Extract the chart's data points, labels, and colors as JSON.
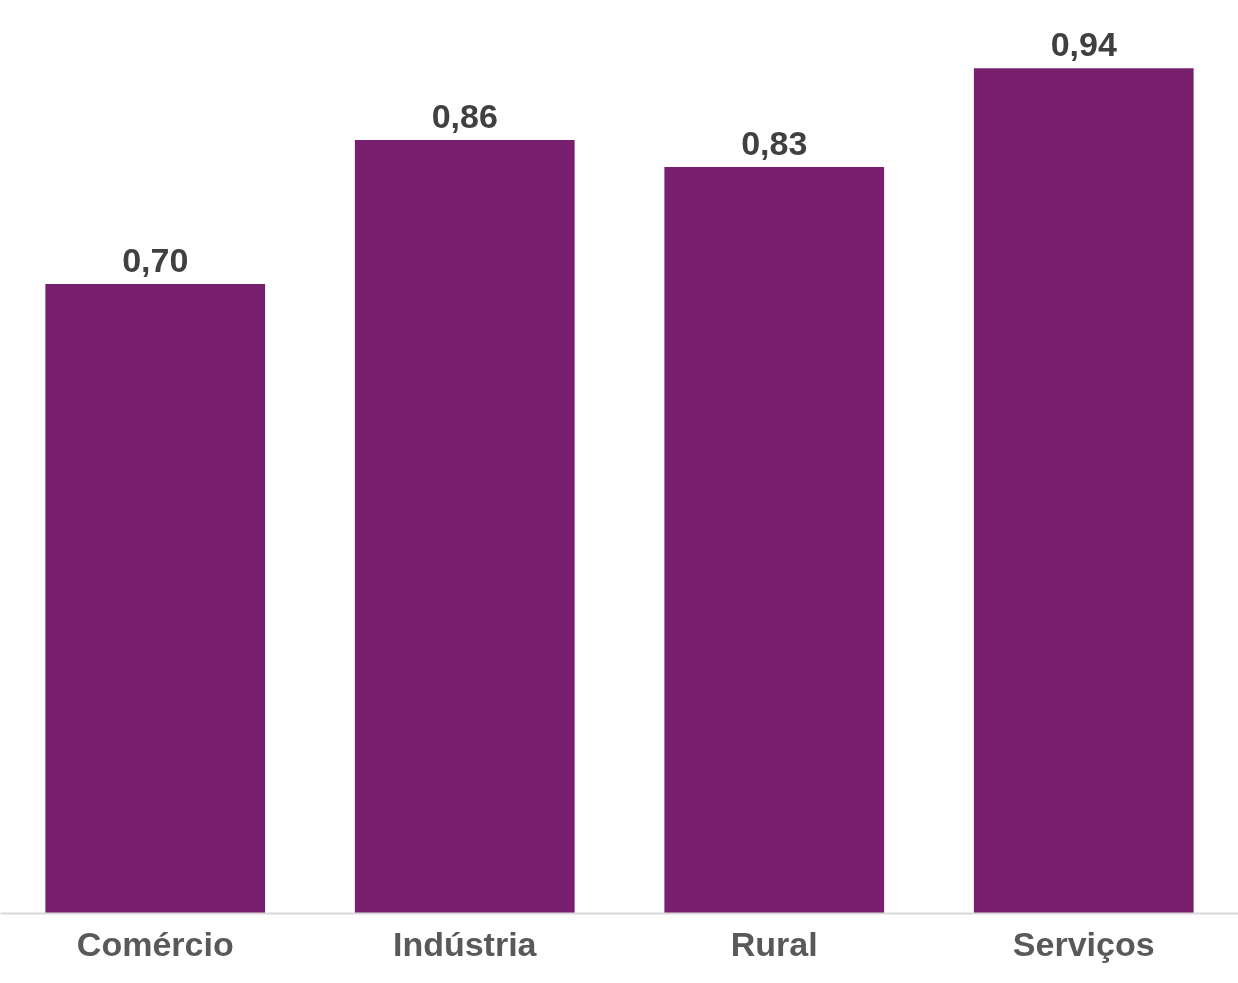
{
  "chart_data": {
    "type": "bar",
    "categories": [
      "Comércio",
      "Indústria",
      "Rural",
      "Serviços"
    ],
    "values": [
      0.7,
      0.86,
      0.83,
      0.94
    ],
    "value_labels": [
      "0,70",
      "0,86",
      "0,83",
      "0,94"
    ],
    "color": "#78206e",
    "grid": false
  }
}
